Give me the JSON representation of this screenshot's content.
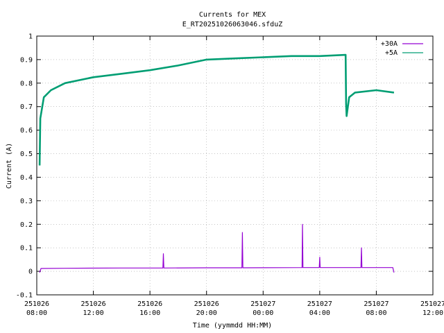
{
  "chart_data": {
    "type": "line",
    "title": "Currents for MEX",
    "subtitle": "E_RT20251026063046.sfduZ",
    "xlabel": "Time (yymmdd HH:MM)",
    "ylabel": "Current (A)",
    "xlim": [
      "2025-10-26 08:00",
      "2025-10-27 12:00"
    ],
    "ylim": [
      -0.1,
      1.0
    ],
    "grid": true,
    "legend_position": "top-right",
    "x_ticks": [
      {
        "date": "251026",
        "time": "08:00"
      },
      {
        "date": "251026",
        "time": "12:00"
      },
      {
        "date": "251026",
        "time": "16:00"
      },
      {
        "date": "251026",
        "time": "20:00"
      },
      {
        "date": "251027",
        "time": "00:00"
      },
      {
        "date": "251027",
        "time": "04:00"
      },
      {
        "date": "251027",
        "time": "08:00"
      },
      {
        "date": "251027",
        "time": "12:00"
      }
    ],
    "y_ticks": [
      "-0.1",
      "0",
      "0.1",
      "0.2",
      "0.3",
      "0.4",
      "0.5",
      "0.6",
      "0.7",
      "0.8",
      "0.9",
      "1"
    ],
    "series": [
      {
        "name": "+30A",
        "color": "#9400d3",
        "points": [
          [
            "2025-10-26 08:12",
            -0.005
          ],
          [
            "2025-10-26 08:18",
            0.012
          ],
          [
            "2025-10-26 10:00",
            0.013
          ],
          [
            "2025-10-26 14:00",
            0.014
          ],
          [
            "2025-10-26 16:55",
            0.014
          ],
          [
            "2025-10-26 16:57",
            0.075
          ],
          [
            "2025-10-26 16:59",
            0.014
          ],
          [
            "2025-10-26 20:00",
            0.015
          ],
          [
            "2025-10-26 22:30",
            0.015
          ],
          [
            "2025-10-26 22:32",
            0.165
          ],
          [
            "2025-10-26 22:34",
            0.015
          ],
          [
            "2025-10-27 02:45",
            0.016
          ],
          [
            "2025-10-27 02:47",
            0.2
          ],
          [
            "2025-10-27 02:49",
            0.016
          ],
          [
            "2025-10-27 03:58",
            0.016
          ],
          [
            "2025-10-27 04:00",
            0.06
          ],
          [
            "2025-10-27 04:02",
            0.016
          ],
          [
            "2025-10-27 06:55",
            0.016
          ],
          [
            "2025-10-27 06:57",
            0.1
          ],
          [
            "2025-10-27 06:59",
            0.016
          ],
          [
            "2025-10-27 09:10",
            0.016
          ],
          [
            "2025-10-27 09:15",
            -0.005
          ]
        ]
      },
      {
        "name": "+5A",
        "color": "#009e73",
        "points": [
          [
            "2025-10-26 08:12",
            0.45
          ],
          [
            "2025-10-26 08:15",
            0.65
          ],
          [
            "2025-10-26 08:30",
            0.74
          ],
          [
            "2025-10-26 09:00",
            0.77
          ],
          [
            "2025-10-26 10:00",
            0.8
          ],
          [
            "2025-10-26 12:00",
            0.825
          ],
          [
            "2025-10-26 14:00",
            0.84
          ],
          [
            "2025-10-26 16:00",
            0.855
          ],
          [
            "2025-10-26 18:00",
            0.875
          ],
          [
            "2025-10-26 20:00",
            0.9
          ],
          [
            "2025-10-26 22:00",
            0.905
          ],
          [
            "2025-10-27 00:00",
            0.91
          ],
          [
            "2025-10-27 02:00",
            0.915
          ],
          [
            "2025-10-27 04:00",
            0.915
          ],
          [
            "2025-10-27 05:50",
            0.92
          ],
          [
            "2025-10-27 05:52",
            0.71
          ],
          [
            "2025-10-27 05:54",
            0.66
          ],
          [
            "2025-10-27 06:05",
            0.74
          ],
          [
            "2025-10-27 06:30",
            0.76
          ],
          [
            "2025-10-27 08:00",
            0.77
          ],
          [
            "2025-10-27 09:15",
            0.76
          ]
        ]
      }
    ]
  }
}
